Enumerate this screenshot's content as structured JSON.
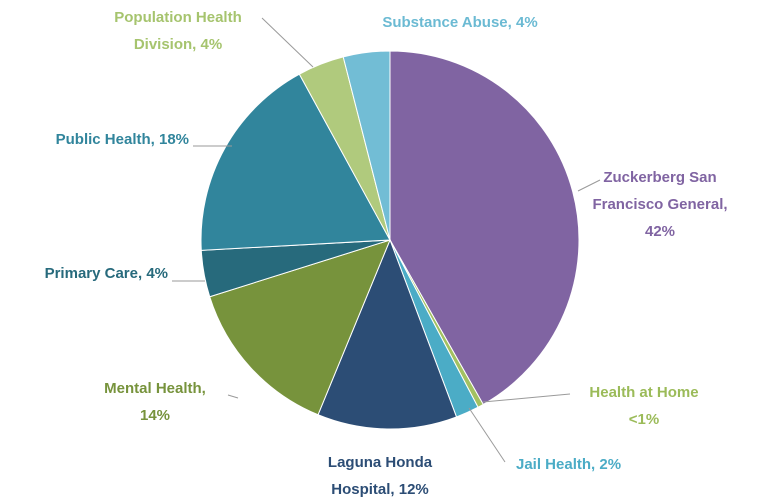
{
  "chart_data": {
    "type": "pie",
    "categories": [
      "Zuckerberg San Francisco General",
      "Health at Home",
      "Jail Health",
      "Laguna Honda Hospital",
      "Mental Health",
      "Primary Care",
      "Public Health",
      "Population Health Division",
      "Substance Abuse"
    ],
    "values": [
      42,
      0.5,
      2,
      12,
      14,
      4,
      18,
      4,
      4
    ],
    "value_labels": [
      "Zuckerberg San Francisco General, 42%",
      "Health at Home <1%",
      "Jail Health, 2%",
      "Laguna Honda Hospital, 12%",
      "Mental Health, 14%",
      "Primary Care, 4%",
      "Public Health, 18%",
      "Population Health Division, 4%",
      "Substance Abuse, 4%"
    ],
    "colors": [
      "#8064a2",
      "#a3c161",
      "#4bacc6",
      "#2c4d75",
      "#77933c",
      "#276a7c",
      "#31859c",
      "#b0ca7d",
      "#72bdd5"
    ],
    "label_colors": [
      "#8064a2",
      "#9bbb59",
      "#4bacc6",
      "#2c4d75",
      "#77933c",
      "#276a7c",
      "#31859c",
      "#a6c46e",
      "#6bbad3"
    ]
  }
}
